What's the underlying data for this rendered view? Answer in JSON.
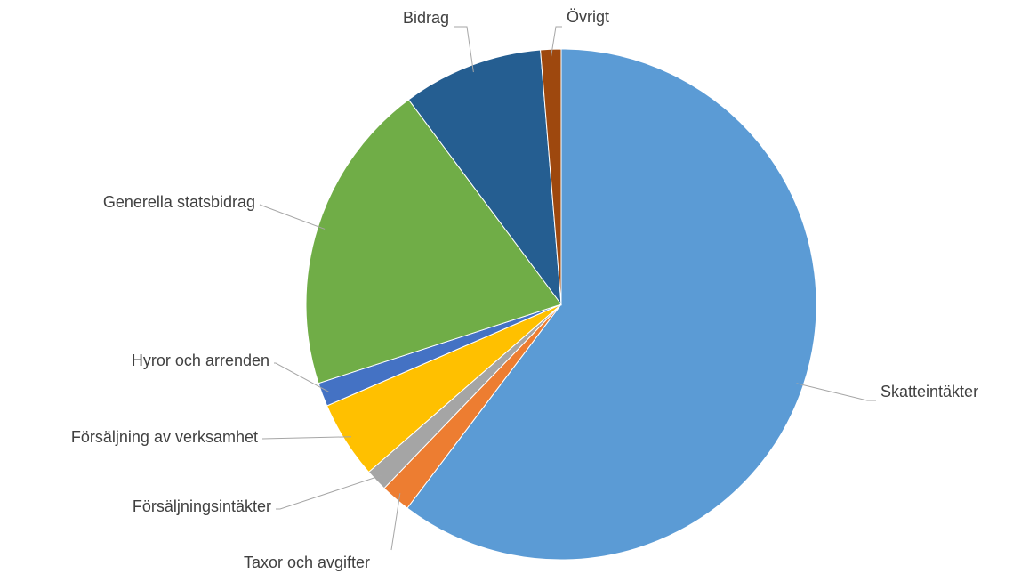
{
  "chart_data": {
    "type": "pie",
    "categories": [
      "Skatteintäkter",
      "Taxor och avgifter",
      "Försäljningsintäkter",
      "Försäljning av verksamhet",
      "Hyror och arrenden",
      "Generella statsbidrag",
      "Bidrag",
      "Övrigt"
    ],
    "values": [
      60.3,
      1.9,
      1.4,
      4.9,
      1.5,
      19.8,
      8.9,
      1.3
    ],
    "colors": [
      "#5b9bd5",
      "#ed7d31",
      "#a5a5a5",
      "#ffc000",
      "#4472c4",
      "#70ad47",
      "#255e91",
      "#9e480e"
    ]
  }
}
